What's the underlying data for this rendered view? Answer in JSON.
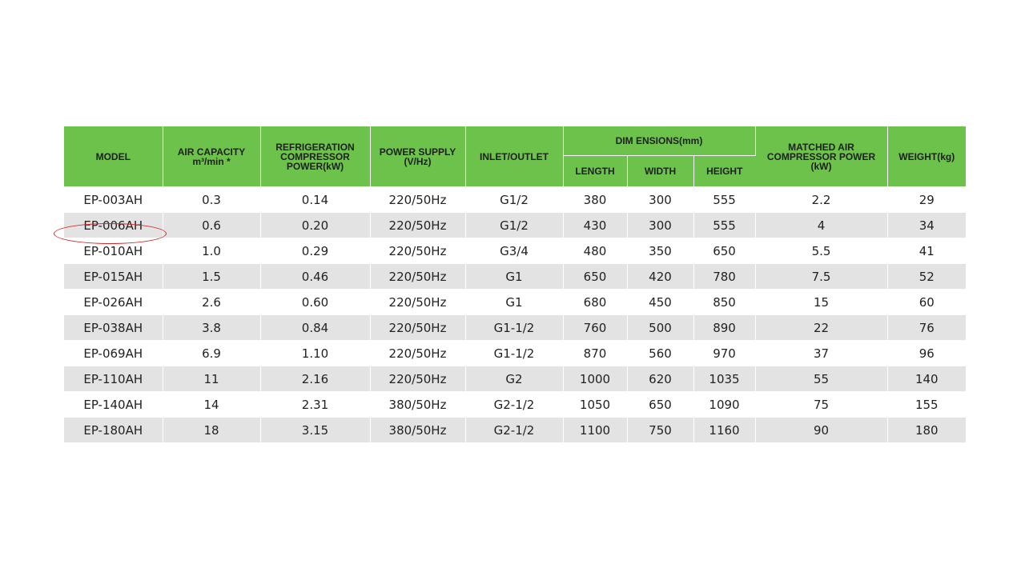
{
  "headers": {
    "model": "MODEL",
    "air_capacity": "AIR CAPACITY",
    "air_capacity_unit": "m³/min *",
    "refrigeration": "REFRIGERATION COMPRESSOR POWER(kW)",
    "power_supply": "POWER SUPPLY",
    "power_supply_unit": "(V/Hz)",
    "inlet_outlet": "INLET/OUTLET",
    "dimensions": "DIM ENSIONS(mm)",
    "length": "LENGTH",
    "width": "WIDTH",
    "height": "HEIGHT",
    "matched_power": "MATCHED AIR COMPRESSOR POWER (kW)",
    "weight": "WEIGHT(kg)"
  },
  "rows": [
    [
      "EP-003AH",
      "0.3",
      "0.14",
      "220/50Hz",
      "G1/2",
      "380",
      "300",
      "555",
      "2.2",
      "29"
    ],
    [
      "EP-006AH",
      "0.6",
      "0.20",
      "220/50Hz",
      "G1/2",
      "430",
      "300",
      "555",
      "4",
      "34"
    ],
    [
      "EP-010AH",
      "1.0",
      "0.29",
      "220/50Hz",
      "G3/4",
      "480",
      "350",
      "650",
      "5.5",
      "41"
    ],
    [
      "EP-015AH",
      "1.5",
      "0.46",
      "220/50Hz",
      "G1",
      "650",
      "420",
      "780",
      "7.5",
      "52"
    ],
    [
      "EP-026AH",
      "2.6",
      "0.60",
      "220/50Hz",
      "G1",
      "680",
      "450",
      "850",
      "15",
      "60"
    ],
    [
      "EP-038AH",
      "3.8",
      "0.84",
      "220/50Hz",
      "G1-1/2",
      "760",
      "500",
      "890",
      "22",
      "76"
    ],
    [
      "EP-069AH",
      "6.9",
      "1.10",
      "220/50Hz",
      "G1-1/2",
      "870",
      "560",
      "970",
      "37",
      "96"
    ],
    [
      "EP-110AH",
      "11",
      "2.16",
      "220/50Hz",
      "G2",
      "1000",
      "620",
      "1035",
      "55",
      "140"
    ],
    [
      "EP-140AH",
      "14",
      "2.31",
      "380/50Hz",
      "G2-1/2",
      "1050",
      "650",
      "1090",
      "75",
      "155"
    ],
    [
      "EP-180AH",
      "18",
      "3.15",
      "380/50Hz",
      "G2-1/2",
      "1100",
      "750",
      "1160",
      "90",
      "180"
    ]
  ],
  "highlighted_model": "EP-006AH",
  "colors": {
    "header_green": "#6cc24a",
    "stripe_gray": "#e3e3e3",
    "highlight_red": "#d42a2a"
  }
}
